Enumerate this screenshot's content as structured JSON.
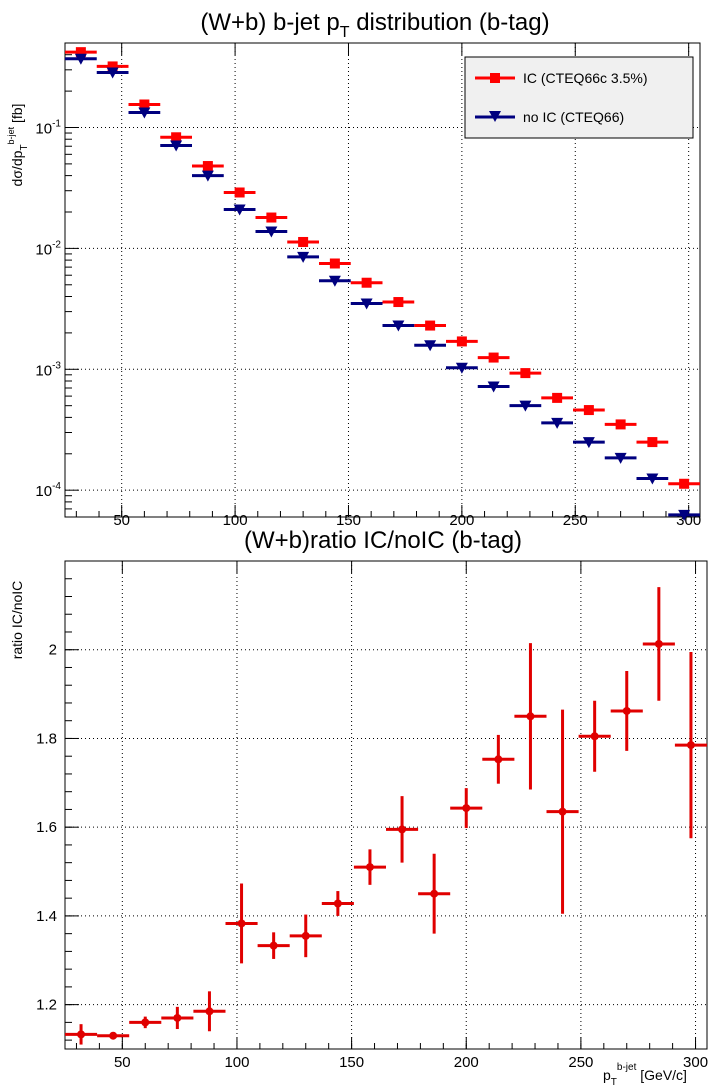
{
  "chart_data": [
    {
      "type": "scatter",
      "title_main": "(W+b) b-jet p",
      "title_sub": "T",
      "title_rest": " distribution (b-tag)",
      "ylabel_main": "dσ/dp",
      "ylabel_sub": "T",
      "ylabel_sup": "b-jet",
      "ylabel_unit": "[fb]",
      "yscale": "log",
      "xlim": [
        25,
        305
      ],
      "ylim": [
        6e-05,
        0.5
      ],
      "grid": true,
      "legend_position": "top-right",
      "x_ticks": [
        50,
        100,
        150,
        200,
        250,
        300
      ],
      "y_ticks": [
        {
          "value": 0.1,
          "base": "10",
          "exp": "-1"
        },
        {
          "value": 0.01,
          "base": "10",
          "exp": "-2"
        },
        {
          "value": 0.001,
          "base": "10",
          "exp": "-3"
        },
        {
          "value": 0.0001,
          "base": "10",
          "exp": "-4"
        }
      ],
      "bin_half_width": 7,
      "x": [
        32,
        46,
        60,
        74,
        88,
        102,
        116,
        130,
        144,
        158,
        172,
        186,
        200,
        214,
        228,
        242,
        256,
        270,
        284,
        298
      ],
      "series": [
        {
          "name": "IC (CTEQ66c 3.5%)",
          "color": "#ff0000",
          "marker": "square",
          "values": [
            0.42,
            0.32,
            0.155,
            0.083,
            0.048,
            0.029,
            0.018,
            0.0113,
            0.0075,
            0.0052,
            0.0036,
            0.0023,
            0.0017,
            0.00125,
            0.00093,
            0.00058,
            0.00046,
            0.00035,
            0.00025,
            0.000113
          ]
        },
        {
          "name": "no IC (CTEQ66)",
          "color": "#00007f",
          "marker": "triangle-down",
          "values": [
            0.37,
            0.285,
            0.133,
            0.071,
            0.04,
            0.021,
            0.0138,
            0.0085,
            0.0054,
            0.0035,
            0.0023,
            0.00158,
            0.00103,
            0.00072,
            0.0005,
            0.00036,
            0.00025,
            0.000185,
            0.000125,
            6.25e-05
          ]
        }
      ]
    },
    {
      "type": "scatter",
      "title": "(W+b)ratio IC/noIC (b-tag)",
      "ylabel": "ratio IC/noIC",
      "xlabel_main": "p",
      "xlabel_sub": "T",
      "xlabel_sup": "b-jet",
      "xlabel_unit": "[GeV/c]",
      "xlim": [
        25,
        305
      ],
      "ylim": [
        1.1,
        2.2
      ],
      "grid": true,
      "x_ticks": [
        50,
        100,
        150,
        200,
        250,
        300
      ],
      "y_ticks": [
        1.2,
        1.4,
        1.6,
        1.8,
        2.0
      ],
      "y_tick_labels": [
        "1.2",
        "1.4",
        "1.6",
        "1.8",
        "2"
      ],
      "bin_half_width": 7,
      "x": [
        32,
        46,
        60,
        74,
        88,
        102,
        116,
        130,
        144,
        158,
        172,
        186,
        200,
        214,
        228,
        242,
        256,
        270,
        284,
        298
      ],
      "series": [
        {
          "name": "",
          "color": "#e00000",
          "marker": "circle",
          "values": [
            1.133,
            1.13,
            1.16,
            1.17,
            1.185,
            1.383,
            1.333,
            1.355,
            1.428,
            1.51,
            1.595,
            1.45,
            1.643,
            1.753,
            1.85,
            1.635,
            1.805,
            1.862,
            2.013,
            1.785
          ],
          "errors": [
            0.023,
            0.007,
            0.013,
            0.025,
            0.045,
            0.09,
            0.03,
            0.048,
            0.028,
            0.04,
            0.075,
            0.09,
            0.045,
            0.055,
            0.165,
            0.23,
            0.08,
            0.09,
            0.128,
            0.21
          ]
        }
      ]
    }
  ]
}
